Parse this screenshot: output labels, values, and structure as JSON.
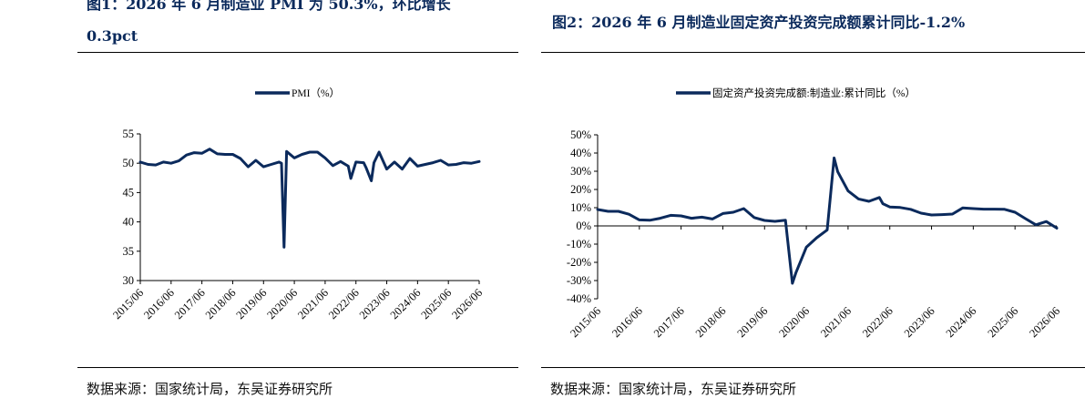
{
  "figure_left": {
    "title_line1": "图1：2026 年 6 月制造业 PMI 为 50.3%，环比增长",
    "title_line2": "0.3pct",
    "source": "数据来源：国家统计局，东吴证券研究所"
  },
  "figure_right": {
    "title": "图2：2026 年 6 月制造业固定资产投资完成额累计同比-1.2%",
    "source": "数据来源：国家统计局，东吴证券研究所"
  },
  "colors": {
    "series": "#0b2a5c",
    "axis": "#000000",
    "rule": "#000000"
  },
  "chart_data": [
    {
      "type": "line",
      "title": "",
      "legend": "top-center",
      "series": [
        {
          "name": "PMI（%）",
          "x": [
            "2015/06",
            "2015/09",
            "2015/12",
            "2016/03",
            "2016/06",
            "2016/09",
            "2016/12",
            "2017/03",
            "2017/06",
            "2017/09",
            "2017/12",
            "2018/03",
            "2018/06",
            "2018/09",
            "2018/12",
            "2019/03",
            "2019/06",
            "2019/09",
            "2019/12",
            "2020/01",
            "2020/02",
            "2020/03",
            "2020/06",
            "2020/09",
            "2020/12",
            "2021/03",
            "2021/06",
            "2021/09",
            "2021/12",
            "2022/03",
            "2022/04",
            "2022/06",
            "2022/09",
            "2022/10",
            "2022/12",
            "2023/01",
            "2023/03",
            "2023/06",
            "2023/09",
            "2023/12",
            "2024/03",
            "2024/06",
            "2024/09",
            "2024/12",
            "2025/03",
            "2025/06",
            "2025/09",
            "2025/12",
            "2026/03",
            "2026/06"
          ],
          "values": [
            50.2,
            49.8,
            49.7,
            50.2,
            50.0,
            50.4,
            51.4,
            51.8,
            51.7,
            52.4,
            51.6,
            51.5,
            51.5,
            50.8,
            49.4,
            50.5,
            49.4,
            49.8,
            50.2,
            50.0,
            35.7,
            52.0,
            50.9,
            51.5,
            51.9,
            51.9,
            50.9,
            49.6,
            50.3,
            49.5,
            47.4,
            50.2,
            50.1,
            49.2,
            47.0,
            50.1,
            51.9,
            49.0,
            50.2,
            49.0,
            50.8,
            49.5,
            49.8,
            50.1,
            50.5,
            49.7,
            49.8,
            50.1,
            50.0,
            50.3
          ]
        }
      ],
      "x_ticks": [
        "2015/06",
        "2016/06",
        "2017/06",
        "2018/06",
        "2019/06",
        "2020/06",
        "2021/06",
        "2022/06",
        "2023/06",
        "2024/06",
        "2025/06",
        "2026/06"
      ],
      "y_ticks": [
        "55",
        "50",
        "45",
        "40",
        "35",
        "30"
      ],
      "ylim": [
        30,
        55
      ],
      "grid": false
    },
    {
      "type": "line",
      "title": "",
      "legend": "top-center",
      "series": [
        {
          "name": "固定资产投资完成额:制造业:累计同比（%）",
          "x": [
            "2015/06",
            "2015/09",
            "2015/12",
            "2016/03",
            "2016/06",
            "2016/09",
            "2016/12",
            "2017/03",
            "2017/06",
            "2017/09",
            "2017/12",
            "2018/03",
            "2018/06",
            "2018/09",
            "2018/12",
            "2019/03",
            "2019/06",
            "2019/09",
            "2019/12",
            "2020/02",
            "2020/03",
            "2020/06",
            "2020/09",
            "2020/12",
            "2021/02",
            "2021/03",
            "2021/06",
            "2021/09",
            "2021/12",
            "2022/03",
            "2022/04",
            "2022/06",
            "2022/09",
            "2022/12",
            "2023/03",
            "2023/06",
            "2023/09",
            "2023/12",
            "2024/03",
            "2024/06",
            "2024/09",
            "2024/12",
            "2025/03",
            "2025/06",
            "2025/09",
            "2025/12",
            "2026/03",
            "2026/06"
          ],
          "values": [
            9.0,
            8.0,
            8.0,
            6.4,
            3.3,
            3.1,
            4.2,
            5.8,
            5.5,
            4.2,
            4.8,
            3.8,
            6.8,
            7.5,
            9.5,
            4.6,
            3.0,
            2.5,
            3.1,
            -31.5,
            -25.8,
            -11.7,
            -6.5,
            -2.2,
            37.3,
            29.8,
            19.2,
            14.8,
            13.5,
            15.6,
            12.2,
            10.4,
            10.1,
            9.1,
            7.0,
            6.0,
            6.2,
            6.5,
            9.9,
            9.5,
            9.2,
            9.2,
            9.1,
            7.5,
            4.0,
            0.6,
            2.4,
            -1.2
          ]
        }
      ],
      "x_ticks": [
        "2015/06",
        "2016/06",
        "2017/06",
        "2018/06",
        "2019/06",
        "2020/06",
        "2021/06",
        "2022/06",
        "2023/06",
        "2024/06",
        "2025/06",
        "2026/06"
      ],
      "y_ticks": [
        "50%",
        "40%",
        "30%",
        "20%",
        "10%",
        "0%",
        "-10%",
        "-20%",
        "-30%",
        "-40%"
      ],
      "ylim": [
        -40,
        50
      ],
      "grid": false
    }
  ]
}
